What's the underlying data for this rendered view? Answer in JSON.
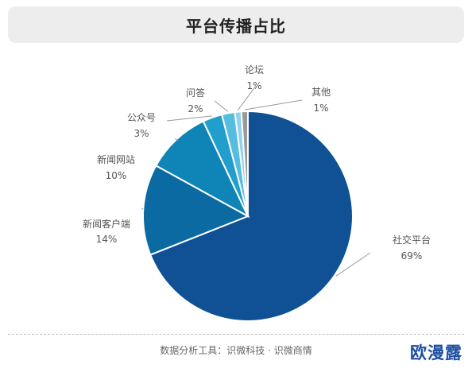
{
  "title": "平台传播占比",
  "footer": "数据分析工具：识微科技 · 识微商情",
  "brand": "欧漫露",
  "colors": {
    "line": "#999999",
    "slice_border": "#ffffff"
  },
  "chart_data": {
    "type": "pie",
    "title": "平台传播占比",
    "slices": [
      {
        "label": "社交平台",
        "pct_text": "69%",
        "value": 69,
        "color": "#0f5194"
      },
      {
        "label": "新闻客户端",
        "pct_text": "14%",
        "value": 14,
        "color": "#0c6aa2"
      },
      {
        "label": "新闻网站",
        "pct_text": "10%",
        "value": 10,
        "color": "#0f84b6"
      },
      {
        "label": "公众号",
        "pct_text": "3%",
        "value": 3,
        "color": "#229ecc"
      },
      {
        "label": "问答",
        "pct_text": "2%",
        "value": 2,
        "color": "#56bde0"
      },
      {
        "label": "论坛",
        "pct_text": "1%",
        "value": 1,
        "color": "#8fd3ee"
      },
      {
        "label": "其他",
        "pct_text": "1%",
        "value": 1,
        "color": "#9a9a9a"
      }
    ]
  }
}
